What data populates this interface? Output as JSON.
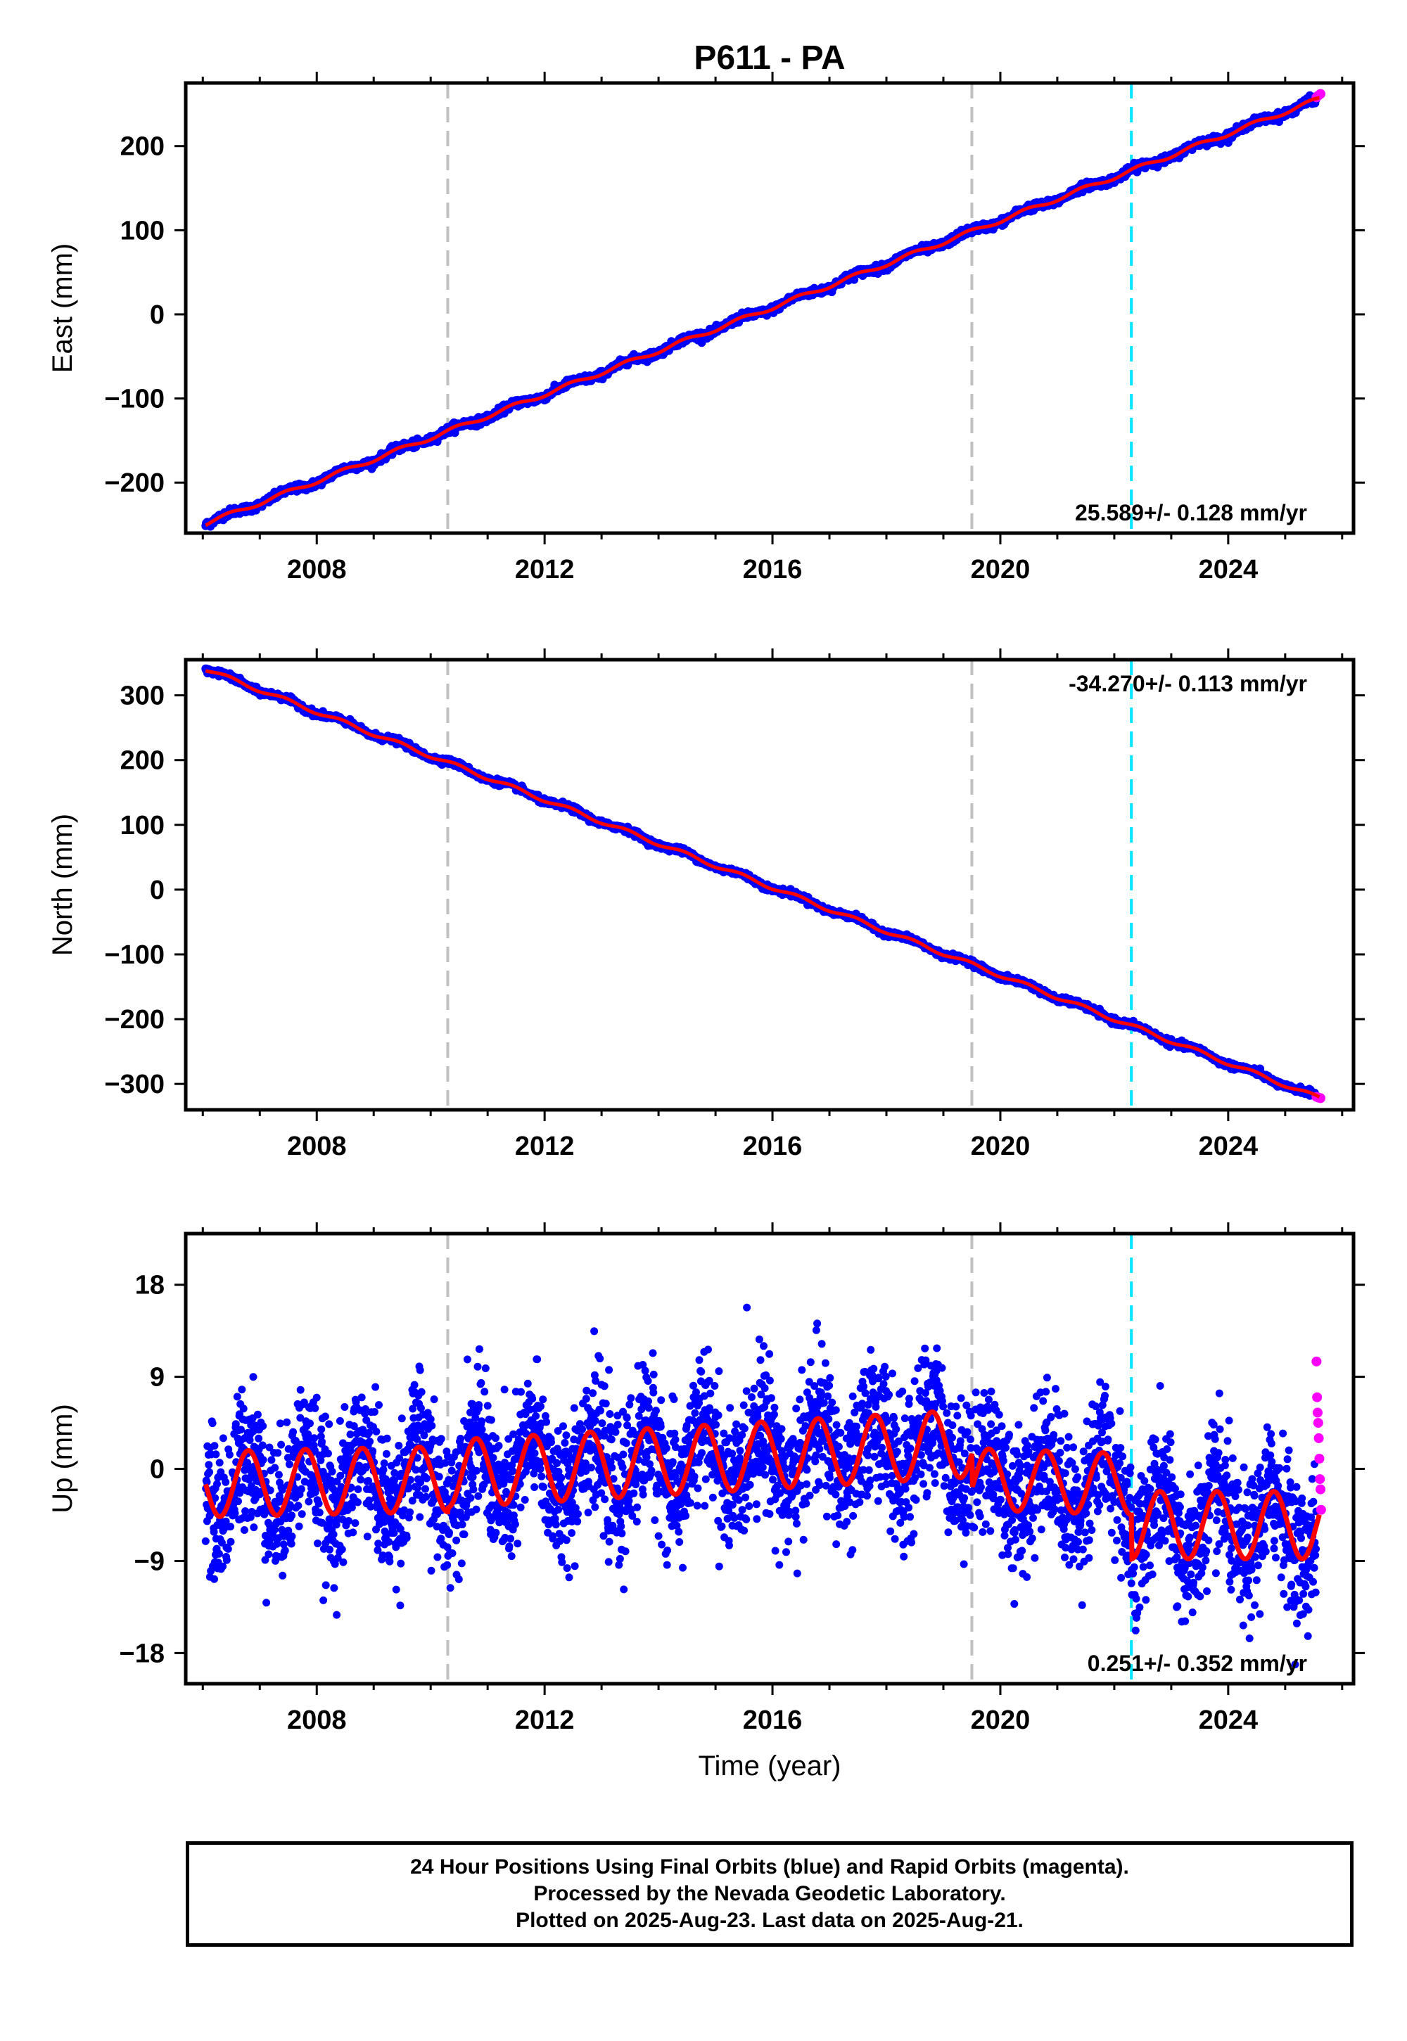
{
  "title": "P611 - PA",
  "colors": {
    "final_orbits": "#0000ff",
    "rapid_orbits": "#ff00ff",
    "model_fit": "#ff0000",
    "equipment_change": "#c0c0c0",
    "earthquake_event": "#00e5ff"
  },
  "chart_data": [
    {
      "type": "scatter",
      "panel": "east",
      "ylabel": "East (mm)",
      "xlabel": "",
      "xlim": [
        2005.7,
        2026.2
      ],
      "ylim": [
        -260,
        275
      ],
      "xticks": [
        2008,
        2012,
        2016,
        2020,
        2024
      ],
      "yticks": [
        -200,
        -100,
        0,
        100,
        200
      ],
      "ytick_labels": [
        "−200",
        "−100",
        "0",
        "100",
        "200"
      ],
      "rate_label": "25.589+/- 0.128 mm/yr",
      "rate_position": "bottom-right",
      "trend": {
        "start": [
          2006.0,
          -250
        ],
        "end": [
          2025.6,
          256
        ],
        "rate_mm_yr": 25.589
      },
      "seasonal_amplitude": 2.5,
      "noise_sd": 2.2,
      "offsets": [
        {
          "time": 2019.5,
          "value": 8
        }
      ],
      "vlines_gray": [
        2010.3,
        2019.5
      ],
      "vlines_cyan": [
        2022.3
      ],
      "rapid_points": [
        [
          2025.55,
          258
        ],
        [
          2025.58,
          260
        ],
        [
          2025.62,
          262
        ]
      ]
    },
    {
      "type": "scatter",
      "panel": "north",
      "ylabel": "North (mm)",
      "xlabel": "",
      "xlim": [
        2005.7,
        2026.2
      ],
      "ylim": [
        -340,
        355
      ],
      "xticks": [
        2008,
        2012,
        2016,
        2020,
        2024
      ],
      "yticks": [
        -300,
        -200,
        -100,
        0,
        100,
        200,
        300
      ],
      "ytick_labels": [
        "−300",
        "−200",
        "−100",
        "0",
        "100",
        "200",
        "300"
      ],
      "rate_label": "-34.270+/- 0.113 mm/yr",
      "rate_position": "top-right",
      "trend": {
        "start": [
          2006.0,
          342
        ],
        "end": [
          2025.6,
          -322
        ],
        "rate_mm_yr": -34.27
      },
      "seasonal_amplitude": 3,
      "noise_sd": 2.2,
      "offsets": [],
      "vlines_gray": [
        2010.3,
        2019.5
      ],
      "vlines_cyan": [
        2022.3
      ],
      "rapid_points": [
        [
          2025.55,
          -320
        ],
        [
          2025.58,
          -321
        ],
        [
          2025.62,
          -322
        ]
      ]
    },
    {
      "type": "scatter",
      "panel": "up",
      "ylabel": "Up (mm)",
      "xlabel": "Time (year)",
      "xlim": [
        2005.7,
        2026.2
      ],
      "ylim": [
        -21,
        23
      ],
      "xticks": [
        2008,
        2012,
        2016,
        2020,
        2024
      ],
      "yticks": [
        -18,
        -9,
        0,
        9,
        18
      ],
      "ytick_labels": [
        "−18",
        "−9",
        "0",
        "9",
        "18"
      ],
      "rate_label": "0.251+/- 0.352 mm/yr",
      "rate_position": "bottom-right",
      "model_segments": [
        {
          "from": 2006.0,
          "to": 2010.3,
          "mean_start": -1.5,
          "mean_end": -1.0,
          "amplitude": 3.2
        },
        {
          "from": 2010.3,
          "to": 2019.5,
          "mean_start": -0.5,
          "mean_end": 2.5,
          "amplitude": 3.3
        },
        {
          "from": 2019.5,
          "to": 2022.3,
          "mean_start": -1.0,
          "mean_end": -1.5,
          "amplitude": 3.0
        },
        {
          "from": 2022.3,
          "to": 2025.6,
          "mean_start": -5.5,
          "mean_end": -5.5,
          "amplitude": 3.3
        }
      ],
      "noise_sd": 3.4,
      "vlines_gray": [
        2010.3,
        2019.5
      ],
      "vlines_cyan": [
        2022.3
      ],
      "rapid_points": [
        [
          2025.55,
          10.5
        ],
        [
          2025.56,
          7
        ],
        [
          2025.57,
          5.5
        ],
        [
          2025.58,
          4.5
        ],
        [
          2025.59,
          3
        ],
        [
          2025.6,
          1
        ],
        [
          2025.61,
          -1
        ],
        [
          2025.62,
          -2
        ],
        [
          2025.63,
          -4
        ]
      ]
    }
  ],
  "footer": {
    "line1": "24 Hour Positions Using Final Orbits (blue) and Rapid Orbits (magenta).",
    "line2": "Processed by the Nevada Geodetic Laboratory.",
    "line3": "Plotted on 2025-Aug-23. Last data on 2025-Aug-21."
  }
}
